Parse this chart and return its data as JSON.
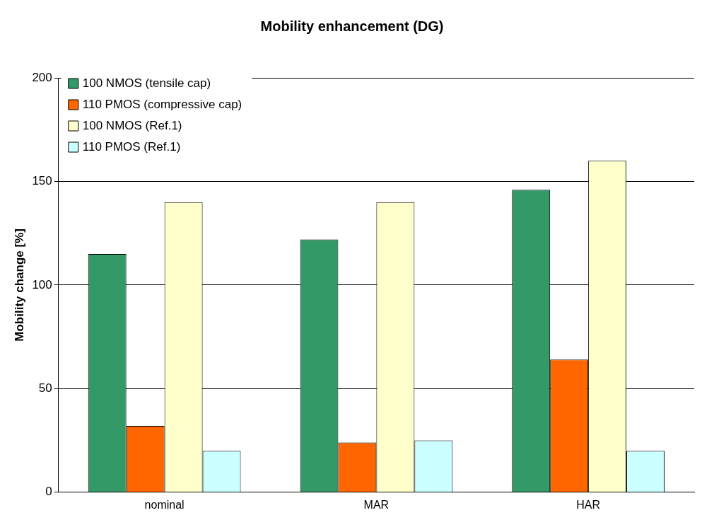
{
  "chart_data": {
    "type": "bar",
    "title": "Mobility enhancement (DG)",
    "ylabel": "Mobility change [%]",
    "categories": [
      "nominal",
      "MAR",
      "HAR"
    ],
    "series": [
      {
        "name": "100 NMOS (tensile cap)",
        "color": "#339966",
        "values": [
          115,
          122,
          146
        ]
      },
      {
        "name": "110 PMOS (compressive cap)",
        "color": "#ff6600",
        "values": [
          32,
          24,
          64
        ]
      },
      {
        "name": "100 NMOS (Ref.1)",
        "color": "#ffffcc",
        "values": [
          140,
          140,
          160
        ]
      },
      {
        "name": "110 PMOS (Ref.1)",
        "color": "#ccffff",
        "values": [
          20,
          25,
          20
        ]
      }
    ],
    "ylim": [
      0,
      200
    ],
    "yticks": [
      0,
      50,
      100,
      150,
      200
    ],
    "grid": "y",
    "legend": "top left"
  }
}
